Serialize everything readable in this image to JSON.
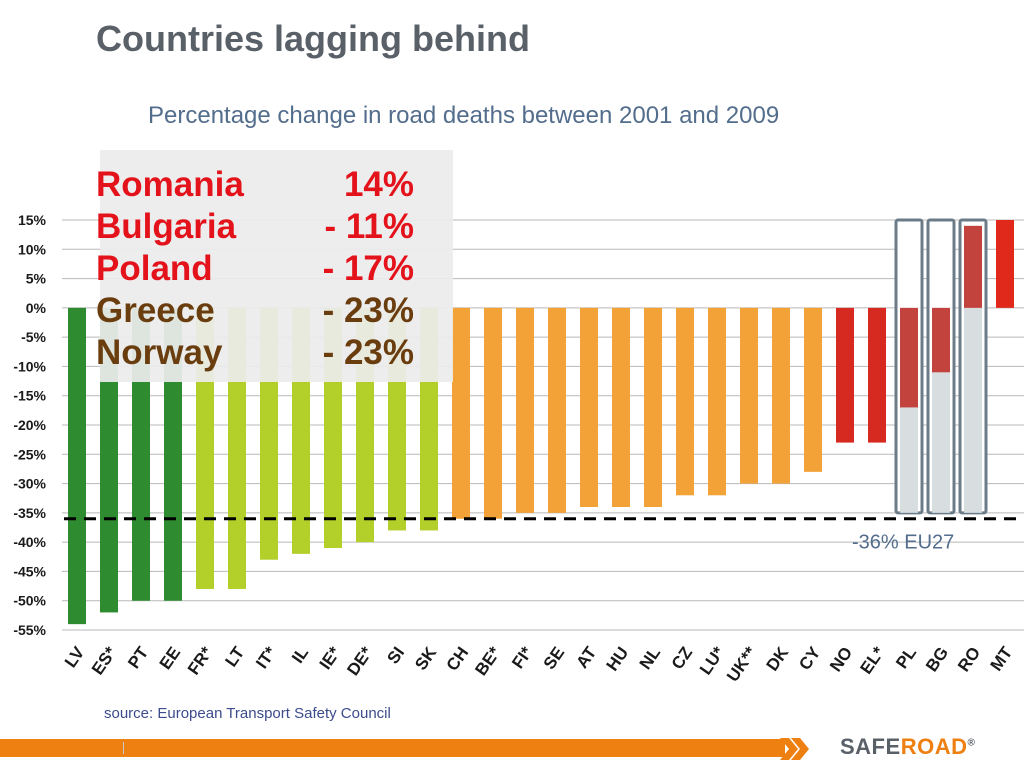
{
  "title": "Countries lagging behind",
  "subtitle": "Percentage change in road deaths between 2001 and 2009",
  "callout": [
    {
      "country": "Romania",
      "value": "14%",
      "color": "#e3121b"
    },
    {
      "country": "Bulgaria",
      "value": "- 11%",
      "color": "#e3121b"
    },
    {
      "country": "Poland",
      "value": "- 17%",
      "color": "#e3121b"
    },
    {
      "country": "Greece",
      "value": "- 23%",
      "color": "#6a3d0f"
    },
    {
      "country": "Norway",
      "value": "- 23%",
      "color": "#6a3d0f"
    }
  ],
  "source": "source: European Transport Safety Council",
  "logo": {
    "part1": "SAFE",
    "part2": "ROAD",
    "mark": "®"
  },
  "chart_data": {
    "type": "bar",
    "categories": [
      "LV",
      "ES*",
      "PT",
      "EE",
      "FR*",
      "LT",
      "IT*",
      "IL",
      "IE*",
      "DE*",
      "SI",
      "SK",
      "CH",
      "BE*",
      "FI*",
      "SE",
      "AT",
      "HU",
      "NL",
      "CZ",
      "LU*",
      "UK**",
      "DK",
      "CY",
      "NO",
      "EL*",
      "PL",
      "BG",
      "RO",
      "MT"
    ],
    "values": [
      -54,
      -52,
      -50,
      -50,
      -48,
      -48,
      -43,
      -42,
      -41,
      -40,
      -38,
      -38,
      -36,
      -36,
      -35,
      -35,
      -34,
      -34,
      -34,
      -32,
      -32,
      -30,
      -30,
      -28,
      -23,
      -23,
      -17,
      -11,
      14,
      15
    ],
    "bar_colors": [
      "#2e8b30",
      "#2e8b30",
      "#2e8b30",
      "#2e8b30",
      "#b3cf2a",
      "#b3cf2a",
      "#b3cf2a",
      "#b3cf2a",
      "#b3cf2a",
      "#b3cf2a",
      "#b3cf2a",
      "#b3cf2a",
      "#f2a236",
      "#f2a236",
      "#f2a236",
      "#f2a236",
      "#f2a236",
      "#f2a236",
      "#f2a236",
      "#f2a236",
      "#f2a236",
      "#f2a236",
      "#f2a236",
      "#f2a236",
      "#d6291f",
      "#d6291f",
      "#c2423e",
      "#c2423e",
      "#c2423e",
      "#e0291b"
    ],
    "highlighted": [
      "PL",
      "BG",
      "RO"
    ],
    "highlight_range": [
      -35,
      15
    ],
    "reference_line": {
      "value": -36,
      "label": "-36% EU27"
    },
    "yticks": [
      15,
      10,
      5,
      0,
      -5,
      -10,
      -15,
      -20,
      -25,
      -30,
      -35,
      -40,
      -45,
      -50,
      -55
    ],
    "ytick_labels": [
      "15%",
      "10%",
      "5%",
      "0%",
      "-5%",
      "-10%",
      "-15%",
      "-20%",
      "-25%",
      "-30%",
      "-35%",
      "-40%",
      "-45%",
      "-50%",
      "-55%"
    ],
    "ylim": [
      -55,
      15
    ],
    "grid": true
  }
}
